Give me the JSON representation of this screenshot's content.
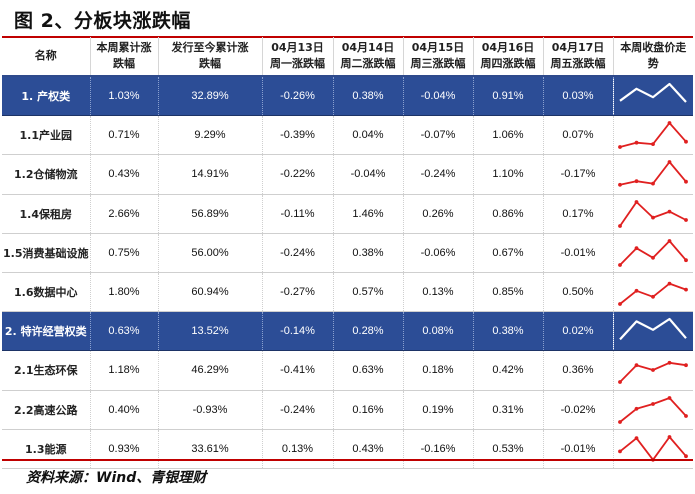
{
  "title": "图 2、分板块涨跌幅",
  "source": "资料来源：Wind、青银理财",
  "colors": {
    "header_rule": "#c00000",
    "section_bg": "#2c4d96",
    "spark_red": "#e02020",
    "spark_white": "#ffffff"
  },
  "headers": [
    [
      "名称"
    ],
    [
      "本周累计涨",
      "跌幅"
    ],
    [
      "发行至今累计涨",
      "跌幅"
    ],
    [
      "04月13日",
      "周一涨跌幅"
    ],
    [
      "04月14日",
      "周二涨跌幅"
    ],
    [
      "04月15日",
      "周三涨跌幅"
    ],
    [
      "04月16日",
      "周四涨跌幅"
    ],
    [
      "04月17日",
      "周五涨跌幅"
    ],
    [
      "本周收盘价走",
      "势"
    ]
  ],
  "rows": [
    {
      "name": "1. 产权类",
      "section": true,
      "values": [
        "1.03%",
        "32.89%",
        "-0.26%",
        "0.38%",
        "-0.04%",
        "0.91%",
        "0.03%"
      ],
      "trend": [
        0.3,
        0.8,
        0.45,
        1.0,
        0.25
      ]
    },
    {
      "name": "1.1产业园",
      "section": false,
      "values": [
        "0.71%",
        "9.29%",
        "-0.39%",
        "0.04%",
        "-0.07%",
        "1.06%",
        "0.07%"
      ],
      "trend": [
        0.0,
        0.18,
        0.12,
        1.0,
        0.22
      ]
    },
    {
      "name": "1.2仓储物流",
      "section": false,
      "values": [
        "0.43%",
        "14.91%",
        "-0.22%",
        "-0.04%",
        "-0.24%",
        "1.10%",
        "-0.17%"
      ],
      "trend": [
        0.05,
        0.2,
        0.1,
        1.0,
        0.18
      ]
    },
    {
      "name": "1.4保租房",
      "section": false,
      "values": [
        "2.66%",
        "56.89%",
        "-0.11%",
        "1.46%",
        "0.26%",
        "0.86%",
        "0.17%"
      ],
      "trend": [
        0.0,
        1.0,
        0.35,
        0.6,
        0.25
      ]
    },
    {
      "name": "1.5消费基础设施",
      "section": false,
      "values": [
        "0.75%",
        "56.00%",
        "-0.24%",
        "0.38%",
        "-0.06%",
        "0.67%",
        "-0.01%"
      ],
      "trend": [
        0.0,
        0.7,
        0.3,
        1.0,
        0.2
      ]
    },
    {
      "name": "1.6数据中心",
      "section": false,
      "values": [
        "1.80%",
        "60.94%",
        "-0.27%",
        "0.57%",
        "0.13%",
        "0.85%",
        "0.50%"
      ],
      "trend": [
        0.0,
        0.55,
        0.3,
        0.85,
        0.6
      ]
    },
    {
      "name": "2. 特许经营权类",
      "section": true,
      "values": [
        "0.63%",
        "13.52%",
        "-0.14%",
        "0.28%",
        "0.08%",
        "0.38%",
        "0.02%"
      ],
      "trend": [
        0.15,
        0.9,
        0.55,
        1.0,
        0.2
      ]
    },
    {
      "name": "2.1生态环保",
      "section": false,
      "values": [
        "1.18%",
        "46.29%",
        "-0.41%",
        "0.63%",
        "0.18%",
        "0.42%",
        "0.36%"
      ],
      "trend": [
        0.0,
        0.7,
        0.5,
        0.8,
        0.7
      ]
    },
    {
      "name": "2.2高速公路",
      "section": false,
      "values": [
        "0.40%",
        "-0.93%",
        "-0.24%",
        "0.16%",
        "0.19%",
        "0.31%",
        "-0.02%"
      ],
      "trend": [
        0.0,
        0.55,
        0.75,
        1.0,
        0.25
      ]
    },
    {
      "name": "1.3能源",
      "section": false,
      "values": [
        "0.93%",
        "33.61%",
        "0.13%",
        "0.43%",
        "-0.16%",
        "0.53%",
        "-0.01%"
      ],
      "trend": [
        0.4,
        0.95,
        0.05,
        1.0,
        0.2
      ]
    }
  ]
}
